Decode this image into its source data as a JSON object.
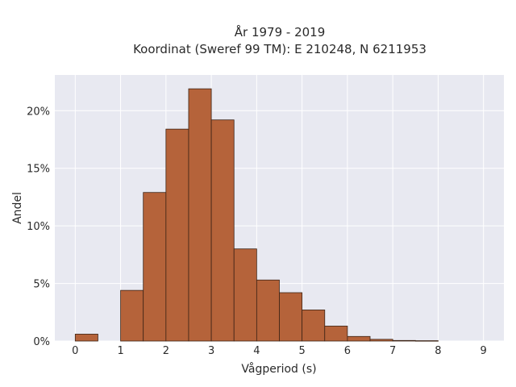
{
  "chart_data": {
    "type": "bar",
    "title_line1": "År 1979 - 2019",
    "title_line2": "Koordinat (Sweref 99 TM): E 210248, N 6211953",
    "xlabel": "Vågperiod (s)",
    "ylabel": "Andel",
    "bin_width": 0.5,
    "bins": [
      {
        "start": 0.0,
        "value": 0.6
      },
      {
        "start": 0.5,
        "value": 0.0
      },
      {
        "start": 1.0,
        "value": 4.4
      },
      {
        "start": 1.5,
        "value": 12.9
      },
      {
        "start": 2.0,
        "value": 18.4
      },
      {
        "start": 2.5,
        "value": 21.9
      },
      {
        "start": 3.0,
        "value": 19.2
      },
      {
        "start": 3.5,
        "value": 8.0
      },
      {
        "start": 4.0,
        "value": 5.3
      },
      {
        "start": 4.5,
        "value": 4.2
      },
      {
        "start": 5.0,
        "value": 2.7
      },
      {
        "start": 5.5,
        "value": 1.3
      },
      {
        "start": 6.0,
        "value": 0.4
      },
      {
        "start": 6.5,
        "value": 0.15
      },
      {
        "start": 7.0,
        "value": 0.05
      },
      {
        "start": 7.5,
        "value": 0.03
      }
    ],
    "xlim": [
      -0.45,
      9.45
    ],
    "ylim": [
      0,
      23.1
    ],
    "xticks": [
      0,
      1,
      2,
      3,
      4,
      5,
      6,
      7,
      8,
      9
    ],
    "yticks": [
      0,
      5,
      10,
      15,
      20
    ],
    "ytick_labels": [
      "0%",
      "5%",
      "10%",
      "15%",
      "20%"
    ],
    "grid": true,
    "colors": {
      "bar_fill": "#b5633a",
      "bar_stroke": "#3d2416",
      "plot_bg": "#e8e9f1",
      "grid": "#ffffff"
    }
  }
}
